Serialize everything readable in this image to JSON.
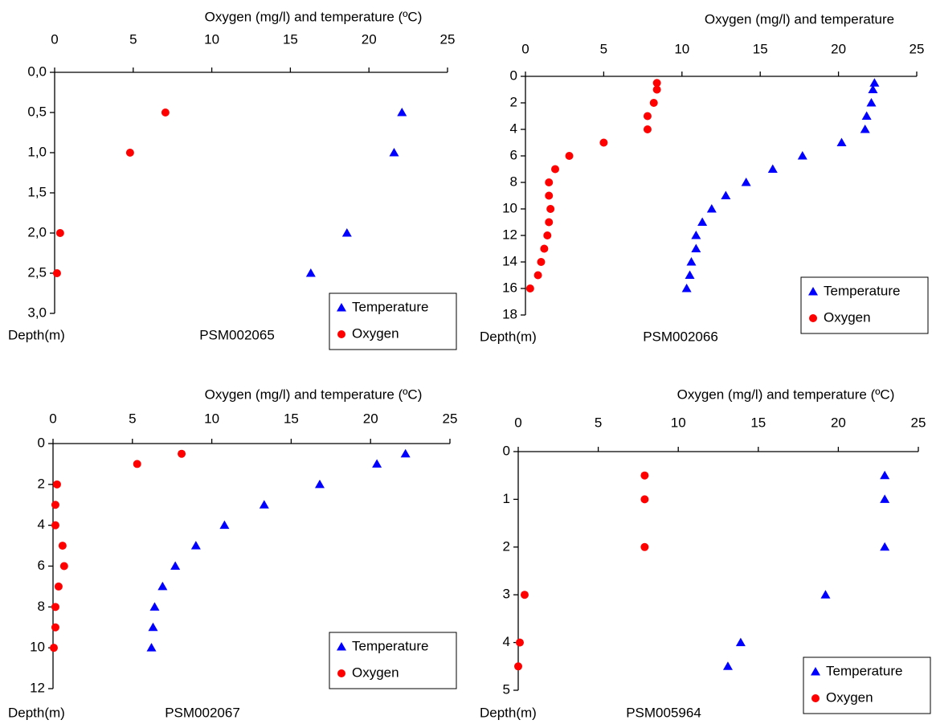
{
  "chart_data": [
    {
      "type": "scatter",
      "x_label": "Oxygen (mg/l) and temperature (ºC)",
      "y_label": "Depth(m)",
      "annotation": "PSM002065",
      "xlim": [
        0,
        25
      ],
      "xticks": [
        0,
        5,
        10,
        15,
        20,
        25
      ],
      "ylim": [
        0,
        3
      ],
      "yticks": [
        {
          "value": 0,
          "label": "0,0"
        },
        {
          "value": 0.5,
          "label": "0,5"
        },
        {
          "value": 1,
          "label": "1,0"
        },
        {
          "value": 1.5,
          "label": "1,5"
        },
        {
          "value": 2,
          "label": "2,0"
        },
        {
          "value": 2.5,
          "label": "2,5"
        },
        {
          "value": 3,
          "label": "3,0"
        }
      ],
      "y_inverted": true,
      "legend": "lower right",
      "series": [
        {
          "name": "Temperature",
          "color": "#0000ff",
          "marker": "triangle",
          "x": [
            22.1,
            21.6,
            18.6,
            16.3
          ],
          "y": [
            0.5,
            1,
            2,
            2.5
          ]
        },
        {
          "name": "Oxygen",
          "color": "#ff0000",
          "marker": "circle",
          "x": [
            7.05,
            4.8,
            0.35,
            0.15
          ],
          "y": [
            0.5,
            1,
            2,
            2.5
          ]
        }
      ]
    },
    {
      "type": "scatter",
      "x_label": "Oxygen (mg/l) and temperature",
      "y_label": "Depth(m)",
      "annotation": "PSM002066",
      "xlim": [
        0,
        25
      ],
      "xticks": [
        0,
        5,
        10,
        15,
        20,
        25
      ],
      "ylim": [
        0,
        18
      ],
      "yticks": [
        0,
        2,
        4,
        6,
        8,
        10,
        12,
        14,
        16,
        18
      ],
      "y_inverted": true,
      "legend": "lower right",
      "series": [
        {
          "name": "Temperature",
          "color": "#0000ff",
          "marker": "triangle",
          "x": [
            22.3,
            22.2,
            22.1,
            21.8,
            21.7,
            20.2,
            17.7,
            15.8,
            14.1,
            12.8,
            11.9,
            11.3,
            10.9,
            10.9,
            10.6,
            10.5,
            10.3
          ],
          "y": [
            0.5,
            1,
            2,
            3,
            4,
            5,
            6,
            7,
            8,
            9,
            10,
            11,
            12,
            13,
            14,
            15,
            16
          ]
        },
        {
          "name": "Oxygen",
          "color": "#ff0000",
          "marker": "circle",
          "x": [
            8.4,
            8.4,
            8.2,
            7.8,
            7.8,
            5.0,
            2.8,
            1.9,
            1.5,
            1.5,
            1.6,
            1.5,
            1.4,
            1.2,
            1.0,
            0.8,
            0.3
          ],
          "y": [
            0.5,
            1,
            2,
            3,
            4,
            5,
            6,
            7,
            8,
            9,
            10,
            11,
            12,
            13,
            14,
            15,
            16
          ]
        }
      ]
    },
    {
      "type": "scatter",
      "x_label": "Oxygen (mg/l) and temperature (ºC)",
      "y_label": "Depth(m)",
      "annotation": "PSM002067",
      "xlim": [
        0,
        25
      ],
      "xticks": [
        0,
        5,
        10,
        15,
        20,
        25
      ],
      "ylim": [
        0,
        12
      ],
      "yticks": [
        0,
        2,
        4,
        6,
        8,
        10,
        12
      ],
      "y_inverted": true,
      "legend": "lower right",
      "series": [
        {
          "name": "Temperature",
          "color": "#0000ff",
          "marker": "triangle",
          "x": [
            22.2,
            20.4,
            16.8,
            13.3,
            10.8,
            9.0,
            7.7,
            6.9,
            6.4,
            6.3,
            6.2
          ],
          "y": [
            0.5,
            1,
            2,
            3,
            4,
            5,
            6,
            7,
            8,
            9,
            10
          ]
        },
        {
          "name": "Oxygen",
          "color": "#ff0000",
          "marker": "circle",
          "x": [
            8.1,
            5.3,
            0.25,
            0.15,
            0.15,
            0.6,
            0.7,
            0.35,
            0.15,
            0.15,
            0.05
          ],
          "y": [
            0.5,
            1,
            2,
            3,
            4,
            5,
            6,
            7,
            8,
            9,
            10
          ]
        }
      ]
    },
    {
      "type": "scatter",
      "x_label": "Oxygen (mg/l) and temperature (ºC)",
      "y_label": "Depth(m)",
      "annotation": "PSM005964",
      "xlim": [
        0,
        25
      ],
      "xticks": [
        0,
        5,
        10,
        15,
        20,
        25
      ],
      "ylim": [
        0,
        5
      ],
      "yticks": [
        0,
        1,
        2,
        3,
        4,
        5
      ],
      "y_inverted": true,
      "legend": "lower right",
      "series": [
        {
          "name": "Temperature",
          "color": "#0000ff",
          "marker": "triangle",
          "x": [
            22.9,
            22.9,
            22.9,
            19.2,
            13.9,
            13.1
          ],
          "y": [
            0.5,
            1,
            2,
            3,
            4,
            4.5
          ]
        },
        {
          "name": "Oxygen",
          "color": "#ff0000",
          "marker": "circle",
          "x": [
            7.9,
            7.9,
            7.9,
            0.4,
            0.1,
            0.0
          ],
          "y": [
            0.5,
            1,
            2,
            3,
            4,
            4.5
          ]
        }
      ]
    }
  ]
}
